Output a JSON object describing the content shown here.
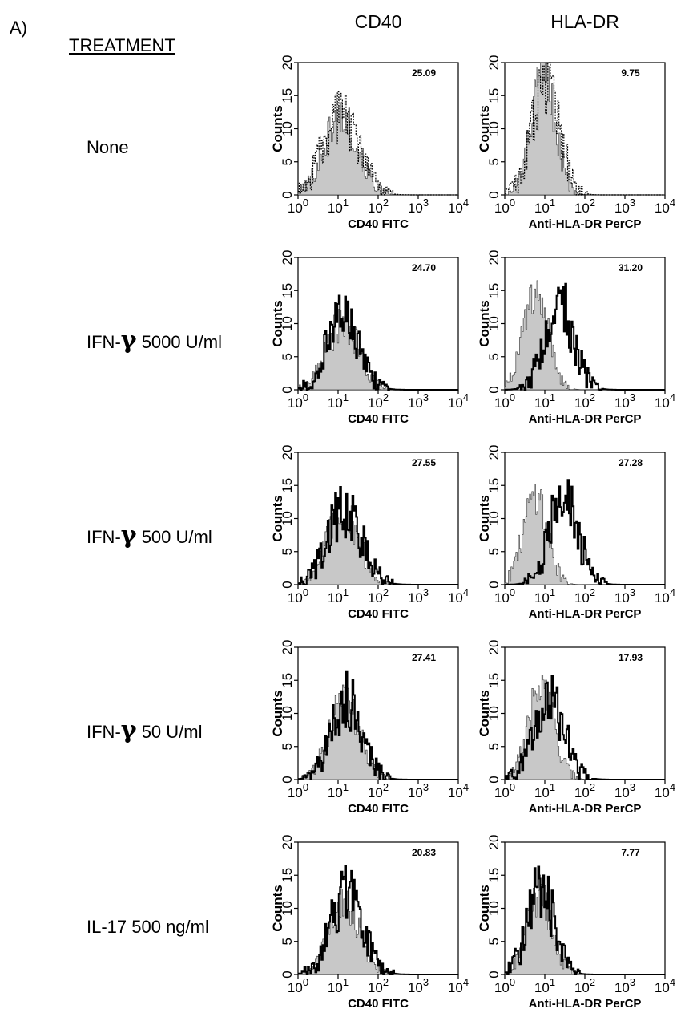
{
  "panel_label": "A)",
  "treatment_header": "TREATMENT",
  "column_headers": [
    "CD40",
    "HLA-DR"
  ],
  "chart_data": {
    "type": "histogram-grid",
    "x_scale": "log",
    "xlim": [
      1,
      10000
    ],
    "ylim": [
      0,
      20
    ],
    "x_ticks": [
      {
        "base": "10",
        "exp": "0"
      },
      {
        "base": "10",
        "exp": "1"
      },
      {
        "base": "10",
        "exp": "2"
      },
      {
        "base": "10",
        "exp": "3"
      },
      {
        "base": "10",
        "exp": "4"
      }
    ],
    "y_ticks": [
      "0",
      "5",
      "10",
      "15",
      "20"
    ],
    "ylabel": "Counts",
    "xlabels": [
      "CD40 FITC",
      "Anti-HLA-DR PerCP"
    ],
    "rows": [
      {
        "treatment": {
          "prefix": "None",
          "gamma": "",
          "suffix": ""
        },
        "panels": [
          {
            "value": "25.09",
            "control_peak": 12,
            "control_mean_log": 1.05,
            "control_sd_log": 0.42,
            "treated_peak": 12,
            "treated_mean_log": 1.05,
            "treated_sd_log": 0.44,
            "dashed": true
          },
          {
            "value": "9.75",
            "control_peak": 18,
            "control_mean_log": 0.95,
            "control_sd_log": 0.3,
            "treated_peak": 17,
            "treated_mean_log": 1.0,
            "treated_sd_log": 0.34,
            "dashed": true
          }
        ]
      },
      {
        "treatment": {
          "prefix": "IFN-",
          "gamma": "γ",
          "suffix": " 5000 U/ml"
        },
        "panels": [
          {
            "value": "24.70",
            "control_peak": 10,
            "control_mean_log": 1.1,
            "control_sd_log": 0.4,
            "treated_peak": 10.5,
            "treated_mean_log": 1.1,
            "treated_sd_log": 0.4,
            "dashed": false
          },
          {
            "value": "31.20",
            "control_peak": 14,
            "control_mean_log": 0.75,
            "control_sd_log": 0.32,
            "treated_peak": 13,
            "treated_mean_log": 1.35,
            "treated_sd_log": 0.36,
            "dashed": false
          }
        ]
      },
      {
        "treatment": {
          "prefix": "IFN-",
          "gamma": "γ",
          "suffix": " 500 U/ml"
        },
        "panels": [
          {
            "value": "27.55",
            "control_peak": 11,
            "control_mean_log": 1.1,
            "control_sd_log": 0.4,
            "treated_peak": 11.5,
            "treated_mean_log": 1.15,
            "treated_sd_log": 0.42,
            "dashed": false
          },
          {
            "value": "27.28",
            "control_peak": 14,
            "control_mean_log": 0.75,
            "control_sd_log": 0.3,
            "treated_peak": 13,
            "treated_mean_log": 1.45,
            "treated_sd_log": 0.36,
            "dashed": false
          }
        ]
      },
      {
        "treatment": {
          "prefix": "IFN-",
          "gamma": "γ",
          "suffix": " 50 U/ml"
        },
        "panels": [
          {
            "value": "27.41",
            "control_peak": 12,
            "control_mean_log": 1.15,
            "control_sd_log": 0.38,
            "treated_peak": 12,
            "treated_mean_log": 1.2,
            "treated_sd_log": 0.38,
            "dashed": false
          },
          {
            "value": "17.93",
            "control_peak": 14,
            "control_mean_log": 0.9,
            "control_sd_log": 0.32,
            "treated_peak": 12,
            "treated_mean_log": 1.1,
            "treated_sd_log": 0.38,
            "dashed": false
          }
        ]
      },
      {
        "treatment": {
          "prefix": "IL-17 500 ng/ml",
          "gamma": "",
          "suffix": ""
        },
        "panels": [
          {
            "value": "20.83",
            "control_peak": 11,
            "control_mean_log": 1.15,
            "control_sd_log": 0.38,
            "treated_peak": 12,
            "treated_mean_log": 1.2,
            "treated_sd_log": 0.4,
            "dashed": false
          },
          {
            "value": "7.77",
            "control_peak": 12,
            "control_mean_log": 0.85,
            "control_sd_log": 0.32,
            "treated_peak": 13,
            "treated_mean_log": 0.88,
            "treated_sd_log": 0.33,
            "dashed": false
          }
        ]
      }
    ]
  }
}
